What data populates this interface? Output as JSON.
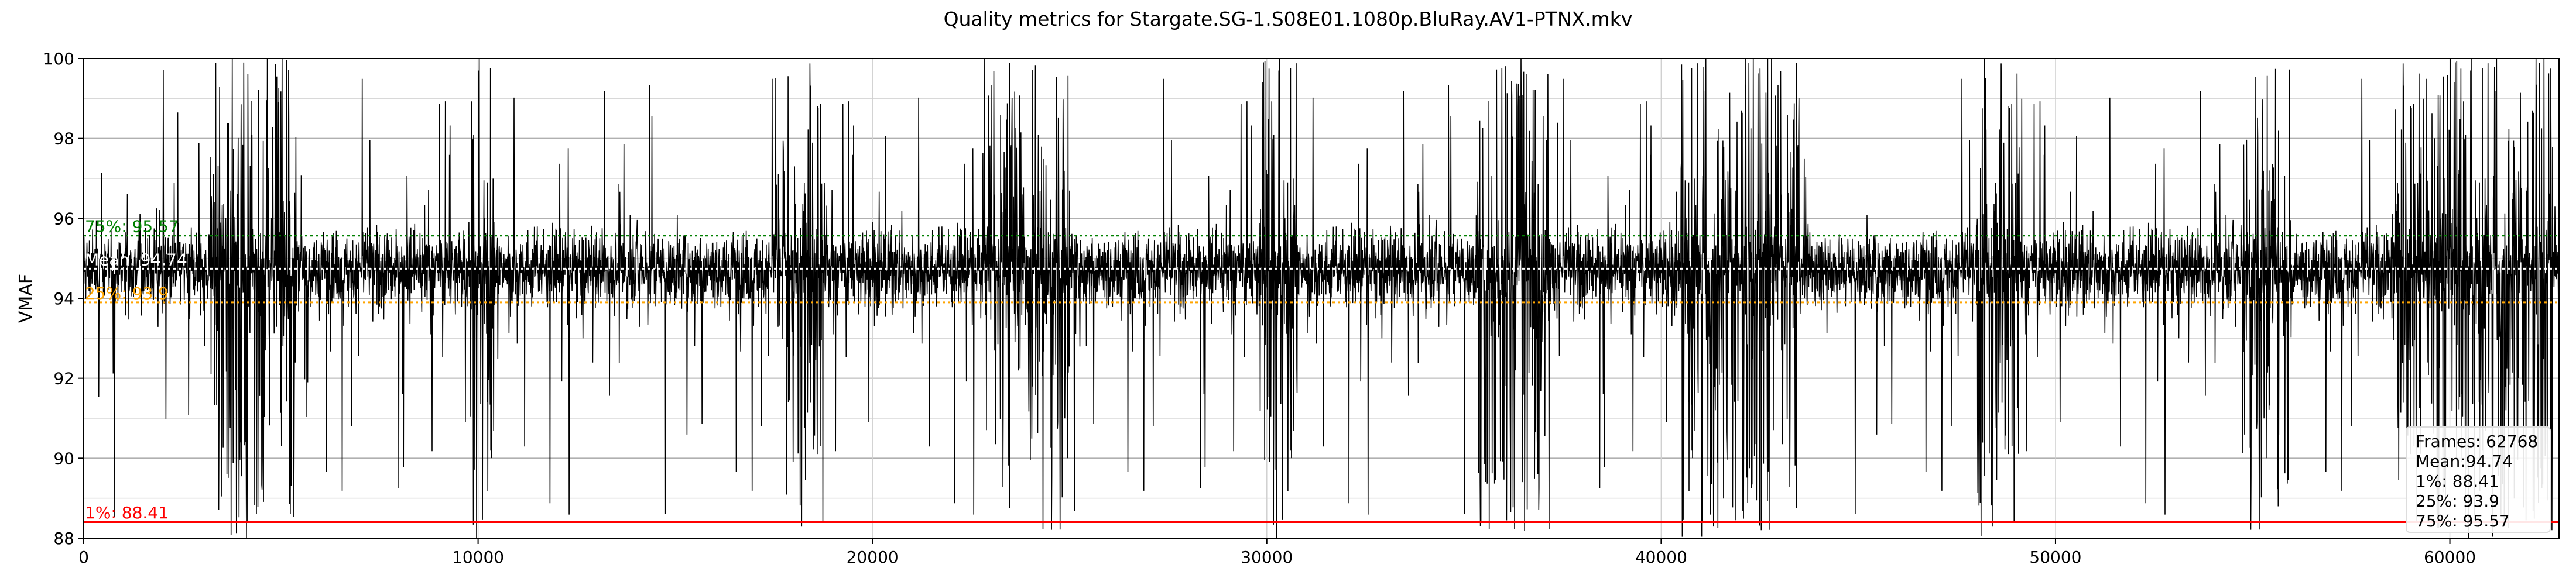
{
  "chart_data": {
    "type": "line",
    "title": "Quality metrics for Stargate.SG-1.S08E01.1080p.BluRay.AV1-PTNX.mkv",
    "xlabel": "",
    "ylabel": "VMAF",
    "xlim": [
      0,
      62768
    ],
    "ylim": [
      88,
      100
    ],
    "x_ticks": [
      0,
      10000,
      20000,
      30000,
      40000,
      50000,
      60000
    ],
    "x_tick_labels": [
      "0",
      "10000",
      "20000",
      "30000",
      "40000",
      "50000",
      "60000"
    ],
    "y_ticks": [
      88,
      90,
      92,
      94,
      96,
      98,
      100
    ],
    "y_tick_labels": [
      "88",
      "90",
      "92",
      "94",
      "96",
      "98",
      "100"
    ],
    "grid": true,
    "line_color": "#000000",
    "reference_lines": [
      {
        "label": "75%: 95.57",
        "value": 95.57,
        "color": "#008000",
        "style": "dotted"
      },
      {
        "label": "Mean: 94.74",
        "value": 94.74,
        "color": "#ffffff",
        "style": "dotted"
      },
      {
        "label": "25%: 93.9",
        "value": 93.9,
        "color": "#ffa500",
        "style": "dotted"
      },
      {
        "label": "1%: 88.41",
        "value": 88.41,
        "color": "#ff0000",
        "style": "solid"
      }
    ],
    "stats_box": {
      "position": "bottom-right",
      "lines": [
        "Frames: 62768",
        "Mean:94.74",
        "1%: 88.41",
        "25%: 93.9",
        "75%: 95.57"
      ]
    },
    "series": [
      {
        "values_summary": "per-frame VMAF, 62768 frames, median band 93.9-95.57 with frequent dips below 88 and spikes to 100",
        "dense_regions": [
          [
            3200,
            5400
          ],
          [
            9800,
            10400
          ],
          [
            17500,
            18800
          ],
          [
            22800,
            25000
          ],
          [
            29800,
            30800
          ],
          [
            35300,
            37200
          ],
          [
            40500,
            43500
          ],
          [
            48000,
            49200
          ],
          [
            54700,
            56000
          ],
          [
            58500,
            62600
          ]
        ]
      }
    ]
  }
}
